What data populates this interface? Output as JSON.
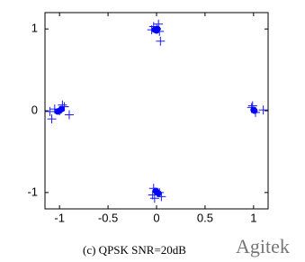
{
  "chart_data": {
    "type": "scatter",
    "caption": "(c)   QPSK   SNR=20dB",
    "watermark": "Agitek",
    "xlim": [
      -1.15,
      1.15
    ],
    "ylim": [
      -1.2,
      1.2
    ],
    "xticks": [
      -1,
      -0.5,
      0,
      0.5,
      1
    ],
    "yticks": [
      -1,
      0,
      1
    ],
    "grid": false,
    "series": [
      {
        "marker": "plus",
        "color": "#1a1aff",
        "x": [
          -0.03,
          0.02,
          0.03,
          -0.05,
          0.04,
          0.0,
          0.98,
          1.02,
          1.1,
          0.99,
          -1.1,
          -1.08,
          -0.95,
          -0.9,
          -1.05,
          -1.0,
          -0.97,
          -0.03,
          0.05,
          -0.02,
          0.03,
          -0.04
        ],
        "values": [
          1.03,
          1.06,
          0.97,
          0.99,
          0.85,
          1.0,
          0.04,
          -0.02,
          0.01,
          0.06,
          -0.01,
          -0.1,
          0.05,
          -0.05,
          0.02,
          0.0,
          0.07,
          -0.95,
          -1.05,
          -1.07,
          -1.0,
          -1.03
        ]
      },
      {
        "marker": "dot",
        "color": "#0000ff",
        "x": [
          0.0,
          0.01,
          -0.02,
          1.0,
          1.01,
          -1.0,
          -0.98,
          -1.02,
          0.0,
          0.02,
          -0.01
        ],
        "values": [
          0.98,
          1.0,
          0.99,
          0.01,
          0.0,
          0.0,
          0.02,
          -0.01,
          -0.99,
          -1.01,
          -0.98
        ]
      }
    ]
  }
}
